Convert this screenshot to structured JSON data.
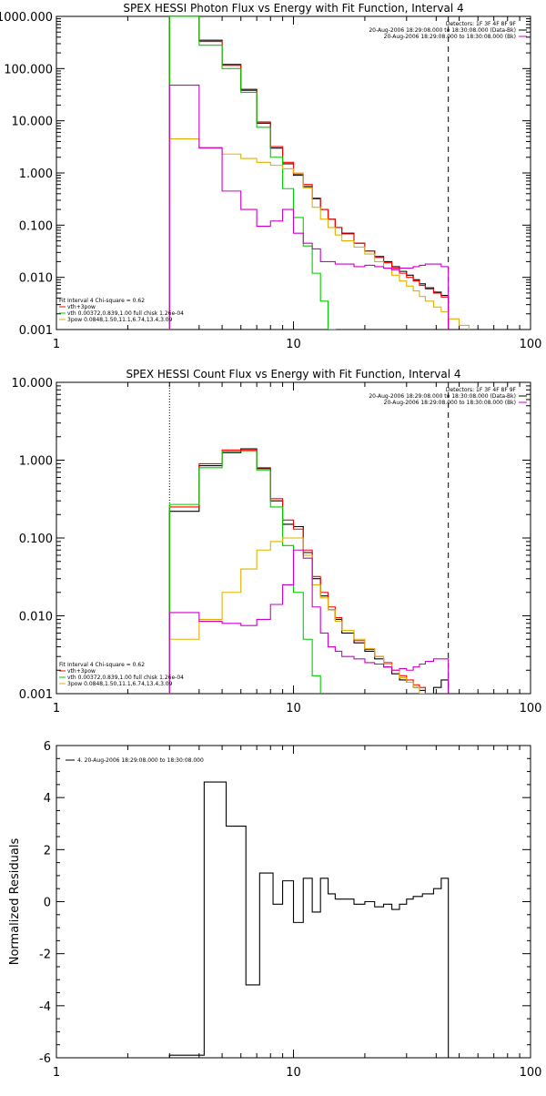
{
  "chart_data": [
    {
      "type": "line",
      "title": "SPEX HESSI Photon Flux vs Energy with Fit Function, Interval 4",
      "x_scale": "log",
      "y_scale": "log",
      "xlim": [
        1,
        100
      ],
      "ylim": [
        0.001,
        1000
      ],
      "x_tick_labels": [
        "1",
        "10",
        "100"
      ],
      "y_tick_labels": [
        "0.001",
        "0.010",
        "0.100",
        "1.000",
        "10.000",
        "100.000",
        "1000.000"
      ],
      "header_lines": [
        "Detectors: 1F 3F 4F 8F 9F",
        "20-Aug-2006 18:29:08.000 to 18:30:08.000 (Data-Bk)",
        "20-Aug-2006 18:29:08.000 to 18:30:08.000 (Bk)"
      ],
      "header_colors": [
        "#000000",
        "#000000",
        "#cc00cc"
      ],
      "legend_lines": [
        "Fit Interval 4   Chi-square = 0.62",
        "vth+3pow",
        "vth 0.00372,0.839,1.00  full chisk 1.26e-04",
        "3pow 0.0848,1.50,11.1,6.74,13.4,3.09"
      ],
      "legend_colors": [
        "#000000",
        "#ff0000",
        "#00cc00",
        "#e0b000"
      ],
      "vlines": [
        {
          "x": 3.0,
          "style": "dotted",
          "color": "#e0b000"
        },
        {
          "x": 45,
          "style": "dashed",
          "color": "#000000"
        }
      ],
      "edges": [
        3,
        4,
        5,
        6,
        7,
        8,
        9,
        10,
        11,
        12,
        13,
        14,
        15,
        16,
        18,
        20,
        22,
        24,
        26,
        28,
        30,
        32,
        34,
        36,
        39,
        42,
        45,
        50,
        55,
        60,
        70,
        80
      ],
      "series": [
        {
          "name": "Data-Bk",
          "color": "#000000",
          "values": [
            1000,
            350,
            120,
            40,
            9,
            3,
            1.5,
            0.9,
            0.55,
            0.32,
            0.2,
            0.13,
            0.09,
            0.07,
            0.045,
            0.032,
            0.025,
            0.02,
            0.016,
            0.013,
            0.011,
            0.009,
            0.0075,
            0.0063,
            0.0052,
            0.0045,
            null,
            null,
            null,
            null,
            null
          ]
        },
        {
          "name": "vth+3pow",
          "color": "#ff0000",
          "values": [
            1000,
            330,
            115,
            38,
            9.5,
            3.2,
            1.6,
            0.95,
            0.6,
            0.33,
            0.2,
            0.13,
            0.09,
            0.068,
            0.045,
            0.032,
            0.024,
            0.019,
            0.015,
            0.012,
            0.01,
            0.0085,
            0.007,
            0.006,
            0.005,
            0.0042,
            null,
            null,
            null,
            null,
            null
          ]
        },
        {
          "name": "vth",
          "color": "#00cc00",
          "values": [
            1000,
            280,
            100,
            35,
            7.5,
            2,
            0.5,
            0.14,
            0.04,
            0.012,
            0.0035,
            0.001,
            null,
            null,
            null,
            null,
            null,
            null,
            null,
            null,
            null,
            null,
            null,
            null,
            null,
            null,
            null,
            null,
            null,
            null,
            null
          ]
        },
        {
          "name": "3pow",
          "color": "#e0b000",
          "values": [
            4.5,
            3.1,
            2.3,
            1.9,
            1.6,
            1.4,
            1.2,
            1.0,
            0.52,
            0.22,
            0.13,
            0.09,
            0.065,
            0.05,
            0.038,
            0.028,
            0.02,
            0.015,
            0.011,
            0.0085,
            0.0068,
            0.0055,
            0.0043,
            0.0035,
            0.0027,
            0.0022,
            0.0016,
            0.0012,
            0.0009,
            null,
            null
          ]
        },
        {
          "name": "Bk",
          "color": "#cc00cc",
          "values": [
            48,
            3,
            0.45,
            0.2,
            0.095,
            0.12,
            0.2,
            0.07,
            0.045,
            0.035,
            0.02,
            0.02,
            0.018,
            0.018,
            0.016,
            0.017,
            0.016,
            0.015,
            0.014,
            0.015,
            0.015,
            0.016,
            0.017,
            0.018,
            0.018,
            0.016,
            null,
            null,
            null,
            null,
            null
          ]
        }
      ]
    },
    {
      "type": "line",
      "title": "SPEX HESSI Count Flux vs Energy with Fit Function, Interval 4",
      "x_scale": "log",
      "y_scale": "log",
      "xlim": [
        1,
        100
      ],
      "ylim": [
        0.001,
        10
      ],
      "x_tick_labels": [
        "1",
        "10",
        "100"
      ],
      "y_tick_labels": [
        "0.001",
        "0.010",
        "0.100",
        "1.000",
        "10.000"
      ],
      "header_lines": [
        "Detectors: 1F 3F 4F 8F 9F",
        "20-Aug-2006 18:29:08.000 to 18:30:08.000 (Data-Bk)",
        "20-Aug-2006 18:29:08.000 to 18:30:08.000 (Bk)"
      ],
      "header_colors": [
        "#000000",
        "#000000",
        "#cc00cc"
      ],
      "legend_lines": [
        "Fit Interval 4   Chi-square = 0.62",
        "vth+3pow",
        "vth 0.00372,0.839,1.00  full chisk 1.26e-04",
        "3pow 0.0848,1.50,11.1,6.74,13.4,3.09"
      ],
      "legend_colors": [
        "#000000",
        "#ff0000",
        "#00cc00",
        "#e0b000"
      ],
      "vlines": [
        {
          "x": 3.0,
          "style": "dotted",
          "color": "#000000"
        },
        {
          "x": 45,
          "style": "dashed",
          "color": "#000000"
        }
      ],
      "edges": [
        3,
        4,
        5,
        6,
        7,
        8,
        9,
        10,
        11,
        12,
        13,
        14,
        15,
        16,
        18,
        20,
        22,
        24,
        26,
        28,
        30,
        32,
        34,
        36,
        39,
        42,
        45
      ],
      "series": [
        {
          "name": "Data-Bk",
          "color": "#000000",
          "values": [
            0.22,
            0.85,
            1.25,
            1.4,
            0.78,
            0.3,
            0.15,
            0.14,
            0.065,
            0.03,
            0.018,
            0.012,
            0.009,
            0.006,
            0.0045,
            0.0035,
            0.0028,
            0.0022,
            0.0018,
            0.0015,
            0.0014,
            0.0012,
            0.0011,
            0.001,
            0.0012,
            0.0015
          ]
        },
        {
          "name": "vth+3pow",
          "color": "#ff0000",
          "values": [
            0.25,
            0.9,
            1.35,
            1.35,
            0.8,
            0.32,
            0.17,
            0.13,
            0.07,
            0.032,
            0.02,
            0.013,
            0.0095,
            0.0065,
            0.0048,
            0.0037,
            0.003,
            0.0025,
            0.002,
            0.0017,
            0.0015,
            0.0013,
            0.0012,
            0.001,
            null,
            null
          ]
        },
        {
          "name": "vth",
          "color": "#00cc00",
          "values": [
            0.27,
            0.8,
            1.3,
            1.3,
            0.75,
            0.25,
            0.08,
            0.02,
            0.005,
            0.0017,
            null,
            null,
            null,
            null,
            null,
            null,
            null,
            null,
            null,
            null,
            null,
            null,
            null,
            null,
            null,
            null
          ]
        },
        {
          "name": "3pow",
          "color": "#e0b000",
          "values": [
            0.005,
            0.009,
            0.02,
            0.04,
            0.07,
            0.09,
            0.1,
            0.1,
            0.06,
            0.025,
            0.017,
            0.012,
            0.0085,
            0.0065,
            0.005,
            0.0038,
            0.003,
            0.0024,
            0.002,
            0.0016,
            0.0014,
            0.0012,
            0.001,
            null,
            null,
            null
          ]
        },
        {
          "name": "Bk",
          "color": "#cc00cc",
          "values": [
            0.011,
            0.0085,
            0.008,
            0.0075,
            0.009,
            0.014,
            0.025,
            0.07,
            0.055,
            0.013,
            0.006,
            0.004,
            0.0035,
            0.003,
            0.0028,
            0.0025,
            0.0024,
            0.0022,
            0.002,
            0.0021,
            0.002,
            0.0022,
            0.0024,
            0.0026,
            0.0028,
            0.0028
          ]
        }
      ]
    },
    {
      "type": "line",
      "title": "",
      "ylabel": "Normalized Residuals",
      "x_scale": "log",
      "y_scale": "linear",
      "xlim": [
        1,
        100
      ],
      "ylim": [
        -6,
        6
      ],
      "x_tick_labels": [
        "1",
        "10",
        "100"
      ],
      "y_tick_labels": [
        "-6",
        "-4",
        "-2",
        "0",
        "2",
        "4",
        "6"
      ],
      "legend_lines": [
        "4. 20-Aug-2006 18:29:08.000 to 18:30:08.000"
      ],
      "legend_colors": [
        "#000000"
      ],
      "edges": [
        3,
        4.2,
        5.2,
        6.3,
        7.2,
        8.2,
        9.0,
        10.0,
        11.0,
        12.0,
        13.0,
        14.0,
        15.0,
        16.0,
        18.0,
        20.0,
        22.0,
        24.0,
        26.0,
        28.0,
        30.0,
        32.0,
        35.0,
        39.0,
        42.0,
        45.0
      ],
      "series": [
        {
          "name": "residuals",
          "color": "#000000",
          "values": [
            -5.9,
            4.6,
            2.9,
            -3.2,
            1.1,
            -0.1,
            0.8,
            -0.8,
            0.9,
            -0.4,
            0.9,
            0.3,
            0.1,
            0.1,
            -0.1,
            0.0,
            -0.2,
            -0.1,
            -0.3,
            -0.1,
            0.1,
            0.2,
            0.3,
            0.5,
            0.9
          ]
        }
      ]
    }
  ]
}
